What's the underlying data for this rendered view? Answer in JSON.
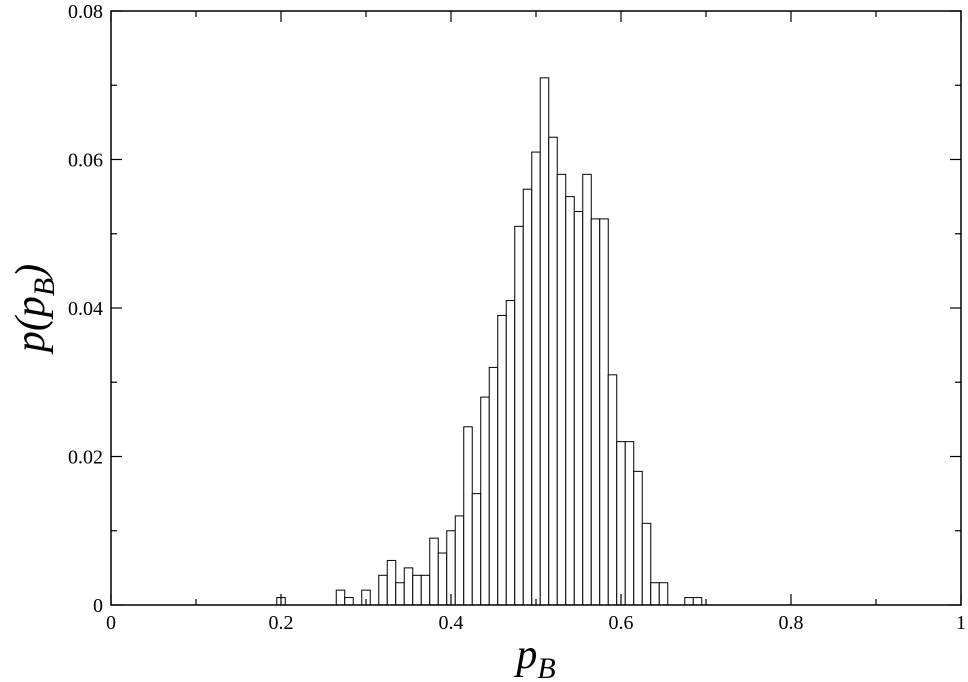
{
  "chart_data": {
    "type": "histogram",
    "xlabel": [
      "p",
      "B"
    ],
    "ylabel": [
      "p(p",
      "B",
      ")"
    ],
    "bins": [
      0.195,
      0.205,
      0.215,
      0.225,
      0.235,
      0.245,
      0.255,
      0.265,
      0.275,
      0.285,
      0.295,
      0.305,
      0.315,
      0.325,
      0.335,
      0.345,
      0.355,
      0.365,
      0.375,
      0.385,
      0.395,
      0.405,
      0.415,
      0.425,
      0.435,
      0.445,
      0.455,
      0.465,
      0.475,
      0.485,
      0.495,
      0.505,
      0.515,
      0.525,
      0.535,
      0.545,
      0.555,
      0.565,
      0.575,
      0.585,
      0.595,
      0.605,
      0.615,
      0.625,
      0.635,
      0.645,
      0.655,
      0.665,
      0.675,
      0.685,
      0.695
    ],
    "values": [
      0.001,
      0,
      0,
      0,
      0,
      0,
      0,
      0.002,
      0.001,
      0,
      0.002,
      0,
      0.004,
      0.006,
      0.003,
      0.005,
      0.004,
      0.004,
      0.009,
      0.007,
      0.01,
      0.012,
      0.024,
      0.015,
      0.028,
      0.032,
      0.039,
      0.041,
      0.051,
      0.056,
      0.061,
      0.071,
      0.063,
      0.058,
      0.055,
      0.053,
      0.058,
      0.052,
      0.052,
      0.031,
      0.022,
      0.022,
      0.018,
      0.011,
      0.003,
      0.003,
      0,
      0,
      0.001,
      0.001
    ],
    "color": "#ffffff",
    "edgecolor": "#000000",
    "xlim": [
      0,
      1
    ],
    "xticks": [
      0,
      0.2,
      0.4,
      0.6,
      0.8,
      1
    ],
    "xminorticks": [
      0.1,
      0.3,
      0.5,
      0.7,
      0.9
    ],
    "ylim": [
      0,
      0.08
    ],
    "yticks": [
      0,
      0.02,
      0.04,
      0.06,
      0.08
    ],
    "yminorticks": [
      0.01,
      0.03,
      0.05,
      0.07
    ]
  }
}
